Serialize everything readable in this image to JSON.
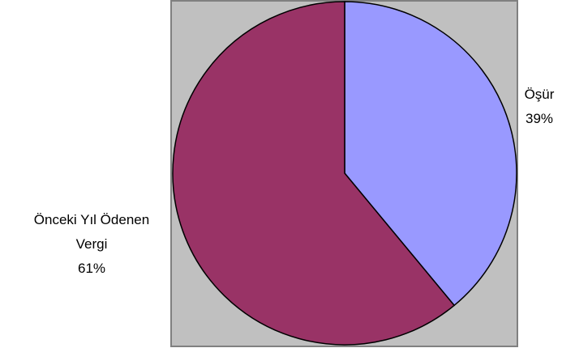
{
  "chart_data": {
    "type": "pie",
    "slices": [
      {
        "label": "Öşür",
        "percent_label": "39%",
        "value": 39,
        "color": "#9999ff"
      },
      {
        "label": "Önceki Yıl Ödenen Vergi",
        "label_lines": [
          "Önceki Yıl Ödenen",
          "Vergi"
        ],
        "percent_label": "61%",
        "value": 61,
        "color": "#993366"
      }
    ],
    "plot_background": "#c0c0c0",
    "legend": "none"
  }
}
